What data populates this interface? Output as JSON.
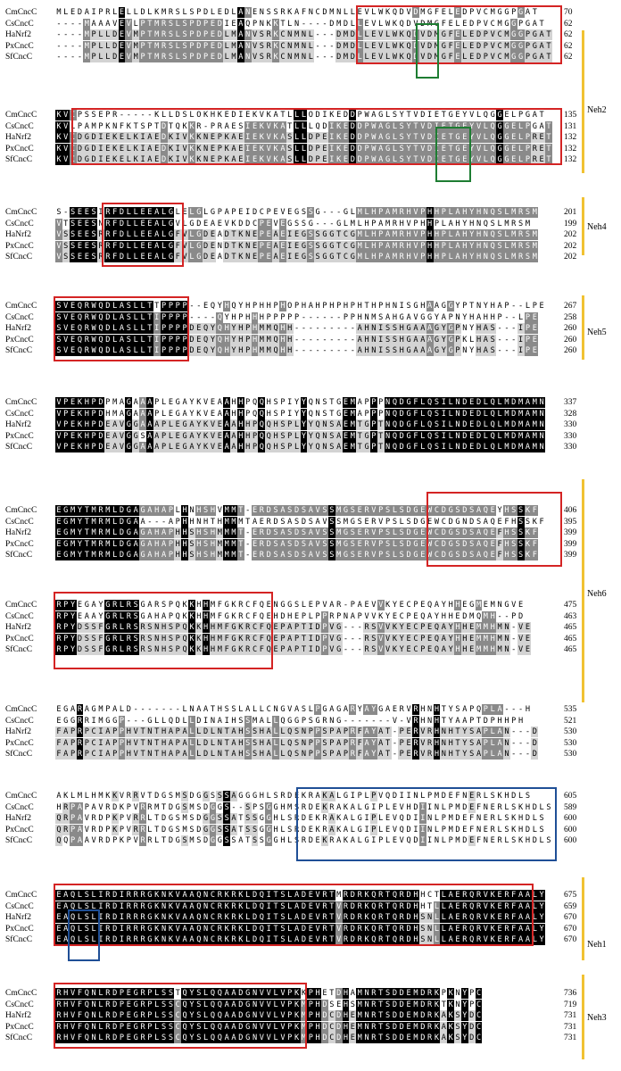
{
  "species": [
    "CmCncC",
    "CsCncC",
    "HaNrf2",
    "PxCncC",
    "SfCncC"
  ],
  "blocks": [
    {
      "positions": [
        "70",
        "62",
        "62",
        "62",
        "62"
      ],
      "seqs": [
        "MLEDAIPRLELLDLKMRSLSPDLEDLANENSSRKAFNCDMNLLEVLWKQDVDMGFELEDPVCMGGPGAT",
        "----MAAAVEVLPTMRSLSPDPEDIEAQPNKKTLN----DMDLLEVLWKQDVDMGFELEDPVCMGGPGAT",
        "----MPLLDEVMPTMRSLSPDPEDLMANVSRKCNMNL---DMDLLEVLWKQDVDMGFELEDPVCMGGPGAT",
        "----MPLLDEVMPTMRSLSPDPEDLMANVSRKCNMNL---DMDLLEVLWKQDVDMGFELEDPVCMGGPGAT",
        "----MPLLDEVMPTMRSLSPDPEDLMANVSRKCNMNL---DMDLLEVLWKQDVDMGFELEDPVCMGGPGAT"
      ]
    },
    {
      "positions": [
        "135",
        "131",
        "132",
        "132",
        "132"
      ],
      "seqs": [
        "KVIPSSEPR-----KLLDSLOKHKEDIEKVKATLLLODIKEDDPWAGLSYTVDIETGEYVLQGGELPGAT",
        "KVLPAMPKNFKTSPTDTQKKR-PRAESIEKVKATLLLQDIKEDDPWAGLSYTVDIETGEYVLQGGELPGAT",
        "KVIDGDIEKELKIAEDKIVKKNEPKAEIEKVKASLLDPEIKEDDPWAGLSYTVDIETGEYVLQGGELPRET",
        "KVIDGDIEKELKIAEDKIVKKNEPKAEIEKVKASLLDPEIKEDDPWAGLSYTVDIETGEYVLQGGELPRET",
        "KVIDGDIEKELKIAEDKIVKKNEPKAEIEKVKASLLDPEIKEDDPWAGLSYTVDIETGEYVLQGGELPRET"
      ]
    },
    {
      "positions": [
        "201",
        "199",
        "202",
        "202",
        "202"
      ],
      "seqs": [
        "S-SEESIRFDLLEEALGLELGLGPAPEIDCPEVEGSSG---GLMLHPAMRHVPHHPLAHYHNQSLMRSM",
        "VTSEESNRFDLLEEALGVLGDEAEVKDDCPEVEGSSG---GLMLHPAMRHVPHHPLAHYHNQSLMRSM",
        "VSSEESRRFDLLEEALGFVLGDEADTKNEPEAEIEGSSGGTCGMLHPAMRHVPHHPLAHYHNQSLMRSM",
        "VSSEESRRFDLLEEALGFVLGDENDTKNEPEAEIEGSSGGTCGMLHPAMRHVPHHPLAHYHNQSLMRSM",
        "VSSEESRRFDLLEEALGFVLGDEADTKNEPEAEIEGSSGGTCGMLHPAMRHVPHHPLAHYHNQSLMRSM"
      ]
    },
    {
      "positions": [
        "267",
        "258",
        "260",
        "260",
        "260"
      ],
      "seqs": [
        "SVEQRWQDLASLLTTPPPP--EQYHQYHPHHPHOPHAHPHPHPHTHPHNISGHAAGGYPTNYHAP--LPE",
        "SVEQRWQDLASLLTIPPPP----QYHPHHHPPPPP------PPHNMSAHGAVGGYAPNYHAHHP--LPE",
        "SVEQRWQDLASLLTIPPPPDEQYQHYHPHMMQHH---------AHNISSHGAAAGYGPNYHAS---IPE",
        "SVEQRWQDLASLLTIPPPPDEQYQHYHPHMMQHH---------AHNISSHGAAAGYGPKLHAS---IPE",
        "SVEQRWQDLASLLTIPPPPDEQYQHYHPHMMQHH---------AHNISSHGAAAGYGPNYHAS---IPE"
      ]
    },
    {
      "positions": [
        "337",
        "328",
        "330",
        "330",
        "330"
      ],
      "seqs": [
        "VPEKHPDPMAGAAAPLEGAYKVEAAHHPQQHSPIYYQNSTGEMAPPPNQDGFLQSILNDEDLQLMDMAMN",
        "VPEKHPDHMAGAAAPLEGAYKVEAAHHPQQHSPIYYQNSTGEMAPPPNQDGFLQSILNDEDLQLMDMAMN",
        "VPEKHPDEAVGGAAAPLEGAYKVEAAHHPQQHSPLYYQNSAEMTGPTNQDGFLQSILNDEDLQLMDMAMN",
        "VPEKHPDEAVGGSAAPLEGAYKVEAAHHPQQHSPLYYQNSAEMTGPTNQDGFLQSILNDEDLQLMDMAMN",
        "VPEKHPDEAVGGAAAPLEGAYKVEAAHHPQQHSPLYYQNSAEMTGPTNQDGFLQSILNDEDLQLMDMAMN"
      ]
    },
    {
      "positions": [
        "406",
        "395",
        "399",
        "399",
        "399"
      ],
      "seqs": [
        "EGMYTMRMLDGAGAHAPLHNHSHVMMT-ERDSASDSAVSSMGSERVPSLSDGEWCDGSDSAQEYHSSKF",
        "EGMYTMRMLDGAA---APHHNHTHMMMTAERDSASDSAVSSMGSERVPSLSDGEWCDGNDSAQEFHSSKF",
        "EGMYTMRMLDGAGAHAPHHSHSHMMMT-ERDSASDSAVSSMGSERVPSLSDGEWCDGSDSAQEFHSSKF",
        "EGMYTMRMLDGAGAHAPHHSHSHMMMT-ERDSASDSAVSSMGSERVPSLSDGEWCDGSDSAQEFHSSKF",
        "EGMYTMRMLDGAGAHAPHHSHSHMMMT-ERDSASDSAVSSMGSERVPSLSDGEWCDGSDSAQEFHSSKF"
      ]
    },
    {
      "positions": [
        "475",
        "463",
        "465",
        "465",
        "465"
      ],
      "seqs": [
        "RPYEGAYGRLRSGARSPQKKHHMFGKRCFQENGGSLEPVAR-PAEVVKYECPEQAYHHEGMEMNGVE",
        "RPYEAAYGRLRSGAHAPQKKHHMFGKRCFQEHDHEPLPPRPNAPVVKYECPEQAYHHEDMQMH--PD",
        "RPYDSSFGRLRSRSNHSPQKKHHMFGKRCFQEPAPTIDPVG---RSVVKYECPEQAYHHEMMHMN-VE",
        "RPYDSSFGRLRSRSNHSPQKKHHMFGKRCFQEPAPTIDPVG---RSVVKYECPEQAYHHEMMHMN-VE",
        "RPYDSSFGRLRSRSNHSPQKKHHMFGKRCFQEPAPTIDPVG---RSVVKYECPEQAYHHEMMHMN-VE"
      ]
    },
    {
      "positions": [
        "535",
        "521",
        "530",
        "530",
        "530"
      ],
      "seqs": [
        "EGARAGMPALD-------LNAATHSSLALLCNGVASLPGAGARYAYGAERVRHNHTYSAPQPLA---H",
        "EGGRRIMGGP---GLLQDLLDINAIHSSMALLQGGPSGRNG-------V-VRHNHTYAAPTDPHHPH",
        "FAPRPCIAPPHVTNTHAPALLDLNTAHSSHALLQSNPPSPAPRFAYAT-PERVRHNHTYSAPLAN---D",
        "FAPRPCIAPPHVTNTHAPALLDLNTAHSSHALLQSNPPSPAPRFAYAT-PERVRHNHTYSAPLAN---D",
        "FAPRPCIAPPHVTNTHAPALLDLNTAHSSHALLQSNPPSPAPRFAYAT-PERVRHNHTYSAPLAN---D"
      ]
    },
    {
      "positions": [
        "605",
        "589",
        "600",
        "600",
        "600"
      ],
      "seqs": [
        "AKLMLHMKKVRRVTDGSMSDGGSSSAGGGHLSRDEKRAKALGIPLPVQDIINLPMDEFNERLSKHDLS",
        "HRPAPAVRDKPVRRMTDGSMSDGGS--SPSGGHMSRDEKRAKALGIPLEVHDIINLPMDEFNERLSKHDLS",
        "QRPAVRDPKPVRRLTDGSMSDGGSSATSSGGHLSRDEKRAKALGIPLEVQDIINLPMDEFNERLSKHDLS",
        "QRPAVRDPKPVRRLTDGSMSDGGSSATSSGGHLSRDEKRAKALGIPLEVQDIINLPMDEFNERLSKHDLS",
        "QQPAAVRDPKPVRRLTDGSMSDGGSSATSSGGHLSRDEKRAKALGIPLEVQDIINLPMDEFNERLSKHDLS"
      ]
    },
    {
      "positions": [
        "675",
        "659",
        "670",
        "670",
        "670"
      ],
      "seqs": [
        "EAQLSLIRDIRRRGKNKVAAQNCRKRKLDQITSLADEVRTMRDRKQRTQRDHHCTLAERQRVKERFAALY",
        "EAQLSLIRDIRRRGKNKVAAQNCRKRKLDQITSLADEVRTVRDRKQRTQRDHHTLLAERQRVKERFAALY",
        "EAQLSLIRDIRRRGKNKVAAQNCRKRKLDQITSLADEVRTVRDRKQRTQRDHSNLLAERQRVKERFAALY",
        "EAQLSLIRDIRRRGKNKVAAQNCRKRKLDQITSLADEVRTVRDRKQRTQRDHSNLLAERQRVKERFAALY",
        "EAQLSLIRDIRRRGKNKVAAQNCRKRKLDQITSLADEVRTVRDRKQRTQRDHSNLLAERQRVKERFAALY"
      ]
    },
    {
      "positions": [
        "736",
        "719",
        "731",
        "731",
        "731"
      ],
      "seqs": [
        "RHVFQNLRDPEGRPLSSTQYSLQQAADGNVVLVPKKPHETDHAMNRTSDDEMDRKPKNYPC",
        "RHVFQNLRDPEGRPLSSCQYSLQQAADGNVVLVPKMPHDSEHSMNRTSDDEMDRKTKNYPC",
        "RHVFQNLRDPEGRPLSSCQYSLQQAADGNVVLVPKMPHDCDHEMNRTSDDEMDRKAKSYDC",
        "RHVFQNLRDPEGRPLSSCQYSLQQAADGNVVLVPKMPHDCDHEMNRTSDDEMDRKAKSYDC",
        "RHVFQNLRDPEGRPLSSCQYSLQQAADGNVVLVPKMPHDCDHEMNRTSDDEMDRKAKSYDC"
      ]
    }
  ],
  "domains": [
    "Neh2",
    "Neh4",
    "Neh5",
    "Neh6",
    "Neh1",
    "Neh3"
  ],
  "colors": {
    "conserved": "#000000",
    "similar": "#8a8a8a",
    "partial": "#d3d3d3",
    "box_red": "#d42424",
    "box_green": "#1e7d32",
    "box_blue": "#1f4f96",
    "domain_bar": "#f1c232"
  }
}
